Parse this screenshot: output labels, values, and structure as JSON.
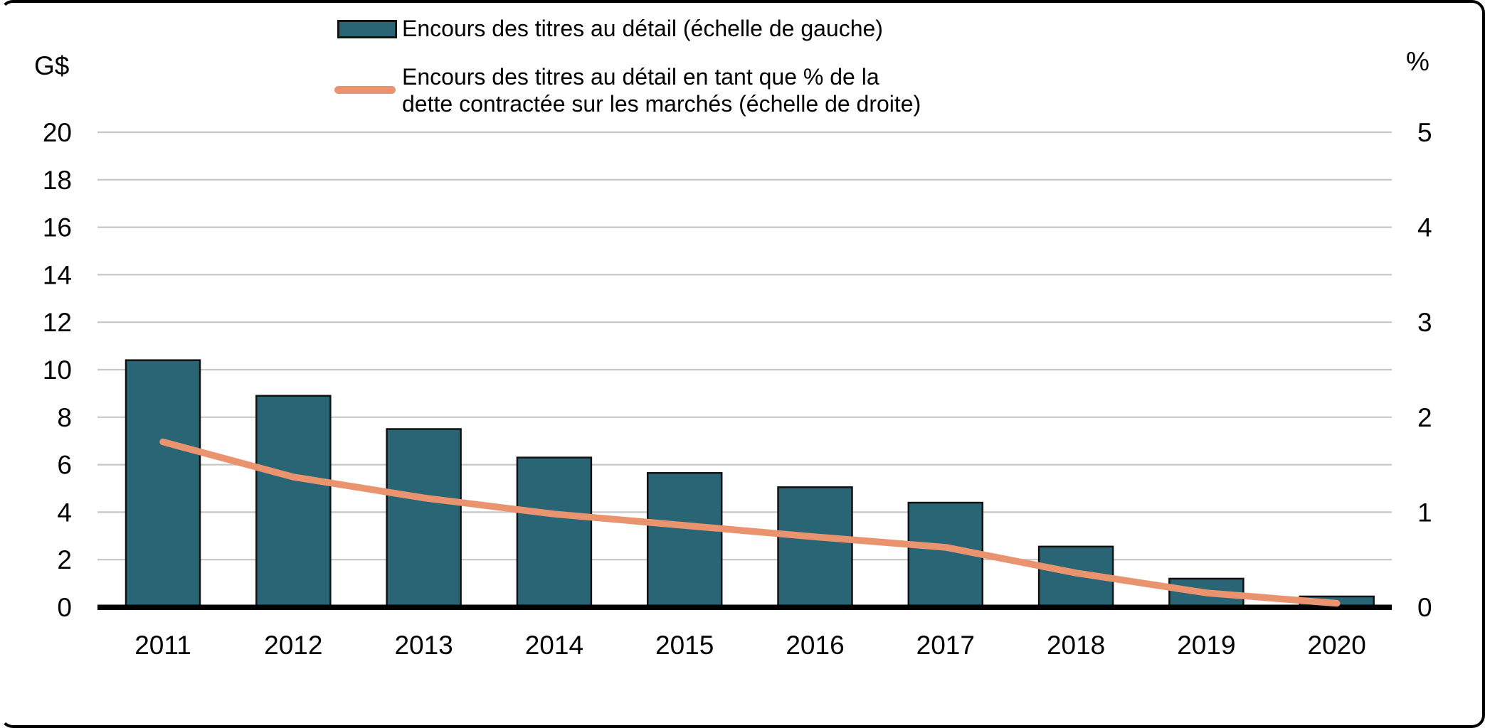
{
  "chart_data": {
    "type": "bar+line",
    "title": "",
    "categories": [
      "2011",
      "2012",
      "2013",
      "2014",
      "2015",
      "2016",
      "2017",
      "2018",
      "2019",
      "2020"
    ],
    "series": [
      {
        "name": "Encours des titres au détail (échelle de gauche)",
        "type": "bar",
        "axis": "left",
        "color": "#2A6576",
        "values": [
          10.4,
          8.9,
          7.5,
          6.3,
          5.65,
          5.05,
          4.4,
          2.55,
          1.2,
          0.45
        ]
      },
      {
        "name": "Encours des titres au détail en tant que % de la dette contractée sur les marchés (échelle de droite)",
        "type": "line",
        "axis": "right",
        "color": "#E9946E",
        "values": [
          1.74,
          1.37,
          1.15,
          0.98,
          0.86,
          0.74,
          0.63,
          0.36,
          0.15,
          0.04
        ]
      }
    ],
    "left_axis": {
      "title": "G$",
      "min": 0,
      "max": 20,
      "ticks": [
        0,
        2,
        4,
        6,
        8,
        10,
        12,
        14,
        16,
        18,
        20
      ]
    },
    "right_axis": {
      "title": "%",
      "min": 0,
      "max": 5,
      "ticks": [
        0,
        1,
        2,
        3,
        4,
        5
      ]
    },
    "grid": true,
    "legend_position": "top"
  },
  "legend": {
    "items": [
      {
        "label": "Encours des titres au détail (échelle de gauche)",
        "swatch": "bar-swatch",
        "color": "#2A6576"
      },
      {
        "label_line1": "Encours des titres au détail en tant que % de la",
        "label_line2": "dette contractée sur les marchés (échelle de droite)",
        "swatch": "line-swatch",
        "color": "#E9946E"
      }
    ]
  },
  "colors": {
    "bar": "#2A6576",
    "bar_outline": "#121212",
    "line": "#E9946E",
    "gridline": "#C7C7C7",
    "axis_line": "#000000",
    "text": "#000000",
    "background": "#FFFFFF"
  }
}
